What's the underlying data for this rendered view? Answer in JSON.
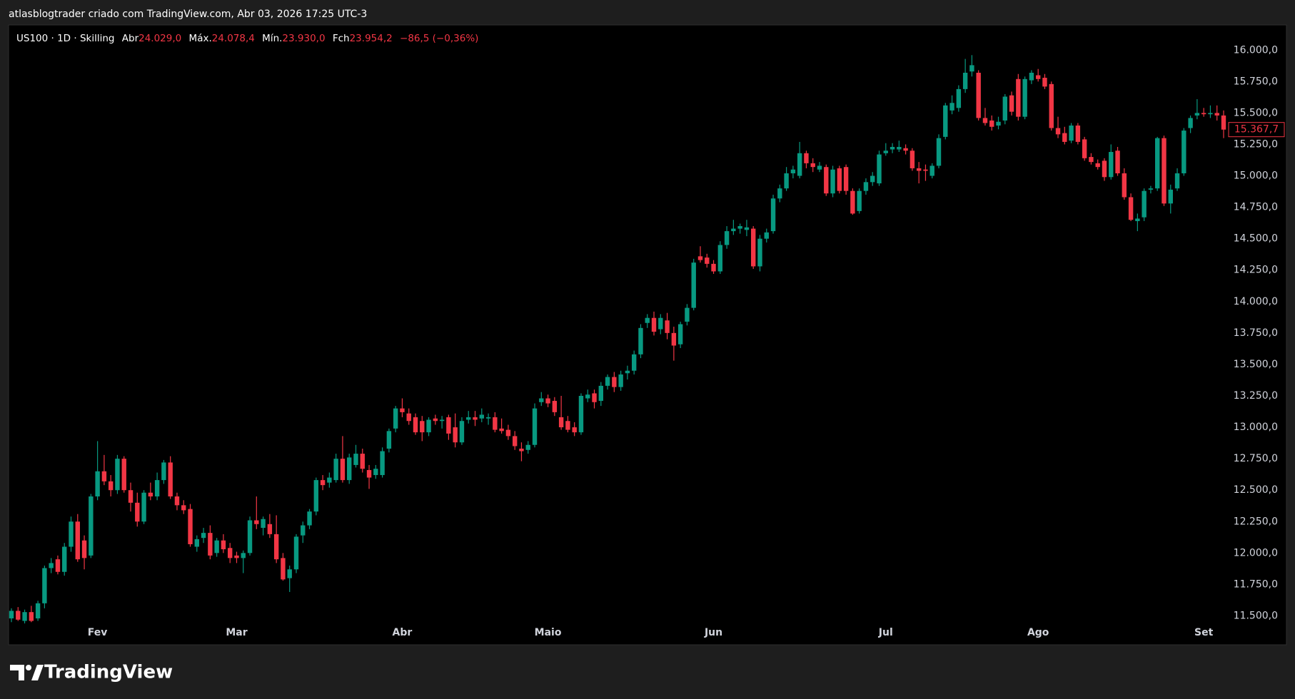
{
  "header": {
    "attribution": "atlasblogtrader criado com TradingView.com, Abr 03, 2026 17:25 UTC-3"
  },
  "legend": {
    "symbol": "US100 · 1D · Skilling",
    "open_label": "Abr",
    "open": "24.029,0",
    "high_label": "Máx.",
    "high": "24.078,4",
    "low_label": "Mín.",
    "low": "23.930,0",
    "close_label": "Fch",
    "close": "23.954,2",
    "change": "−86,5 (−0,36%)"
  },
  "footer": {
    "brand": "TradingView"
  },
  "chart_data": {
    "type": "candlestick",
    "up_color": "#089981",
    "down_color": "#f23645",
    "ylim": [
      11270,
      16200
    ],
    "yticks": [
      {
        "value": 11500,
        "label": "11.500,0"
      },
      {
        "value": 11750,
        "label": "11.750,0"
      },
      {
        "value": 12000,
        "label": "12.000,0"
      },
      {
        "value": 12250,
        "label": "12.250,0"
      },
      {
        "value": 12500,
        "label": "12.500,0"
      },
      {
        "value": 12750,
        "label": "12.750,0"
      },
      {
        "value": 13000,
        "label": "13.000,0"
      },
      {
        "value": 13250,
        "label": "13.250,0"
      },
      {
        "value": 13500,
        "label": "13.500,0"
      },
      {
        "value": 13750,
        "label": "13.750,0"
      },
      {
        "value": 14000,
        "label": "14.000,0"
      },
      {
        "value": 14250,
        "label": "14.250,0"
      },
      {
        "value": 14500,
        "label": "14.500,0"
      },
      {
        "value": 14750,
        "label": "14.750,0"
      },
      {
        "value": 15000,
        "label": "15.000,0"
      },
      {
        "value": 15250,
        "label": "15.250,0"
      },
      {
        "value": 15500,
        "label": "15.500,0"
      },
      {
        "value": 15750,
        "label": "15.750,0"
      },
      {
        "value": 16000,
        "label": "16.000,0"
      }
    ],
    "last_price": {
      "value": 15367.7,
      "label": "15.367,7"
    },
    "categories": [
      null,
      null,
      null,
      null,
      null,
      null,
      null,
      null,
      null,
      null,
      null,
      null,
      null,
      "Fev",
      null,
      null,
      null,
      null,
      null,
      null,
      null,
      null,
      null,
      null,
      null,
      null,
      null,
      null,
      null,
      null,
      null,
      null,
      null,
      null,
      "Mar",
      null,
      null,
      null,
      null,
      null,
      null,
      null,
      null,
      null,
      null,
      null,
      null,
      null,
      null,
      null,
      null,
      null,
      null,
      null,
      null,
      null,
      null,
      null,
      null,
      "Abr",
      null,
      null,
      null,
      null,
      null,
      null,
      null,
      null,
      null,
      null,
      null,
      null,
      null,
      null,
      null,
      null,
      null,
      null,
      null,
      null,
      null,
      "Maio",
      null,
      null,
      null,
      null,
      null,
      null,
      null,
      null,
      null,
      null,
      null,
      null,
      null,
      null,
      null,
      null,
      null,
      null,
      null,
      null,
      null,
      null,
      null,
      null,
      "Jun",
      null,
      null,
      null,
      null,
      null,
      null,
      null,
      null,
      null,
      null,
      null,
      null,
      null,
      null,
      null,
      null,
      null,
      null,
      null,
      null,
      null,
      null,
      null,
      null,
      null,
      "Jul",
      null,
      null,
      null,
      null,
      null,
      null,
      null,
      null,
      null,
      null,
      null,
      null,
      null,
      null,
      null,
      null,
      null,
      null,
      null,
      null,
      null,
      null,
      "Ago",
      null,
      null,
      null,
      null,
      null,
      null,
      null,
      null,
      null,
      null,
      null,
      null,
      null,
      null,
      null,
      null,
      null,
      null,
      null,
      null,
      null,
      null,
      null,
      null,
      "Set",
      null,
      null,
      null
    ],
    "candles": [
      [
        11480,
        11560,
        11450,
        11540
      ],
      [
        11540,
        11570,
        11460,
        11470
      ],
      [
        11460,
        11550,
        11440,
        11530
      ],
      [
        11530,
        11580,
        11450,
        11460
      ],
      [
        11480,
        11620,
        11460,
        11600
      ],
      [
        11600,
        11900,
        11560,
        11880
      ],
      [
        11880,
        11960,
        11840,
        11920
      ],
      [
        11950,
        11980,
        11830,
        11850
      ],
      [
        11850,
        12080,
        11820,
        12050
      ],
      [
        12050,
        12290,
        12010,
        12250
      ],
      [
        12250,
        12310,
        11930,
        11950
      ],
      [
        12100,
        12140,
        11870,
        11960
      ],
      [
        11980,
        12470,
        11960,
        12450
      ],
      [
        12450,
        12890,
        12420,
        12650
      ],
      [
        12650,
        12780,
        12540,
        12570
      ],
      [
        12570,
        12620,
        12450,
        12500
      ],
      [
        12500,
        12780,
        12470,
        12750
      ],
      [
        12750,
        12770,
        12480,
        12500
      ],
      [
        12500,
        12560,
        12330,
        12400
      ],
      [
        12400,
        12480,
        12210,
        12250
      ],
      [
        12250,
        12500,
        12230,
        12480
      ],
      [
        12480,
        12560,
        12420,
        12450
      ],
      [
        12450,
        12640,
        12420,
        12580
      ],
      [
        12580,
        12740,
        12550,
        12720
      ],
      [
        12720,
        12770,
        12430,
        12450
      ],
      [
        12450,
        12480,
        12340,
        12380
      ],
      [
        12380,
        12420,
        12310,
        12340
      ],
      [
        12350,
        12390,
        12050,
        12070
      ],
      [
        12050,
        12140,
        12010,
        12110
      ],
      [
        12120,
        12200,
        12080,
        12160
      ],
      [
        12160,
        12220,
        11950,
        11980
      ],
      [
        12000,
        12120,
        11970,
        12100
      ],
      [
        12100,
        12150,
        12000,
        12030
      ],
      [
        12040,
        12080,
        11920,
        11960
      ],
      [
        11980,
        12010,
        11920,
        11960
      ],
      [
        11960,
        12020,
        11840,
        12000
      ],
      [
        12000,
        12290,
        11980,
        12260
      ],
      [
        12260,
        12450,
        12190,
        12230
      ],
      [
        12200,
        12290,
        12140,
        12270
      ],
      [
        12230,
        12310,
        12120,
        12150
      ],
      [
        12150,
        12300,
        11920,
        11950
      ],
      [
        11960,
        12000,
        11780,
        11790
      ],
      [
        11800,
        11900,
        11690,
        11870
      ],
      [
        11870,
        12150,
        11840,
        12130
      ],
      [
        12140,
        12250,
        12080,
        12220
      ],
      [
        12220,
        12350,
        12190,
        12330
      ],
      [
        12330,
        12600,
        12300,
        12580
      ],
      [
        12580,
        12620,
        12500,
        12540
      ],
      [
        12560,
        12640,
        12520,
        12600
      ],
      [
        12580,
        12790,
        12560,
        12750
      ],
      [
        12750,
        12930,
        12560,
        12580
      ],
      [
        12580,
        12790,
        12550,
        12760
      ],
      [
        12700,
        12860,
        12680,
        12790
      ],
      [
        12790,
        12830,
        12640,
        12670
      ],
      [
        12660,
        12700,
        12510,
        12600
      ],
      [
        12620,
        12700,
        12590,
        12670
      ],
      [
        12620,
        12840,
        12600,
        12810
      ],
      [
        12830,
        12990,
        12800,
        12970
      ],
      [
        12990,
        13170,
        12960,
        13150
      ],
      [
        13150,
        13230,
        13080,
        13120
      ],
      [
        13110,
        13150,
        13020,
        13050
      ],
      [
        13080,
        13110,
        12940,
        12960
      ],
      [
        13050,
        13090,
        12890,
        12960
      ],
      [
        12960,
        13080,
        12930,
        13060
      ],
      [
        13070,
        13100,
        13020,
        13050
      ],
      [
        13050,
        13090,
        12990,
        13060
      ],
      [
        13080,
        13100,
        12900,
        12950
      ],
      [
        13000,
        13110,
        12840,
        12880
      ],
      [
        12880,
        13080,
        12860,
        13050
      ],
      [
        13060,
        13130,
        13030,
        13080
      ],
      [
        13080,
        13130,
        13010,
        13060
      ],
      [
        13070,
        13150,
        13040,
        13100
      ],
      [
        13070,
        13110,
        13020,
        13080
      ],
      [
        13080,
        13120,
        12960,
        12980
      ],
      [
        12990,
        13070,
        12950,
        12970
      ],
      [
        12980,
        13020,
        12900,
        12930
      ],
      [
        12930,
        12970,
        12820,
        12850
      ],
      [
        12830,
        12880,
        12730,
        12810
      ],
      [
        12820,
        12890,
        12790,
        12860
      ],
      [
        12860,
        13190,
        12840,
        13150
      ],
      [
        13200,
        13280,
        13170,
        13230
      ],
      [
        13230,
        13260,
        13160,
        13190
      ],
      [
        13210,
        13240,
        13090,
        13120
      ],
      [
        13080,
        13250,
        12980,
        13000
      ],
      [
        13050,
        13090,
        12960,
        12980
      ],
      [
        13000,
        13040,
        12930,
        12960
      ],
      [
        12960,
        13270,
        12940,
        13250
      ],
      [
        13230,
        13300,
        13200,
        13260
      ],
      [
        13270,
        13300,
        13150,
        13200
      ],
      [
        13210,
        13360,
        13170,
        13330
      ],
      [
        13330,
        13420,
        13300,
        13400
      ],
      [
        13400,
        13440,
        13280,
        13320
      ],
      [
        13320,
        13450,
        13290,
        13420
      ],
      [
        13430,
        13490,
        13380,
        13450
      ],
      [
        13450,
        13610,
        13420,
        13580
      ],
      [
        13580,
        13820,
        13550,
        13790
      ],
      [
        13830,
        13900,
        13790,
        13870
      ],
      [
        13870,
        13920,
        13730,
        13760
      ],
      [
        13780,
        13900,
        13740,
        13870
      ],
      [
        13850,
        13910,
        13700,
        13750
      ],
      [
        13750,
        13800,
        13530,
        13650
      ],
      [
        13660,
        13840,
        13630,
        13820
      ],
      [
        13840,
        13980,
        13810,
        13950
      ],
      [
        13950,
        14340,
        13930,
        14310
      ],
      [
        14360,
        14440,
        14310,
        14330
      ],
      [
        14350,
        14380,
        14270,
        14300
      ],
      [
        14300,
        14330,
        14220,
        14240
      ],
      [
        14240,
        14480,
        14220,
        14450
      ],
      [
        14450,
        14600,
        14420,
        14560
      ],
      [
        14560,
        14650,
        14530,
        14580
      ],
      [
        14580,
        14620,
        14540,
        14600
      ],
      [
        14570,
        14650,
        14520,
        14590
      ],
      [
        14580,
        14600,
        14260,
        14280
      ],
      [
        14280,
        14530,
        14240,
        14500
      ],
      [
        14500,
        14580,
        14470,
        14550
      ],
      [
        14560,
        14850,
        14540,
        14820
      ],
      [
        14820,
        14930,
        14790,
        14900
      ],
      [
        14900,
        15070,
        14880,
        15020
      ],
      [
        15020,
        15080,
        14980,
        15050
      ],
      [
        15000,
        15270,
        14980,
        15180
      ],
      [
        15180,
        15200,
        15060,
        15100
      ],
      [
        15100,
        15140,
        15030,
        15070
      ],
      [
        15050,
        15110,
        15030,
        15080
      ],
      [
        15070,
        15090,
        14840,
        14860
      ],
      [
        14860,
        15080,
        14830,
        15050
      ],
      [
        15060,
        15080,
        14860,
        14880
      ],
      [
        15070,
        15090,
        14850,
        14880
      ],
      [
        14880,
        14900,
        14690,
        14700
      ],
      [
        14720,
        14900,
        14700,
        14880
      ],
      [
        14880,
        14980,
        14850,
        14950
      ],
      [
        14950,
        15030,
        14920,
        15000
      ],
      [
        14940,
        15200,
        14920,
        15170
      ],
      [
        15180,
        15260,
        15160,
        15200
      ],
      [
        15210,
        15260,
        15180,
        15230
      ],
      [
        15210,
        15280,
        15190,
        15230
      ],
      [
        15220,
        15250,
        15170,
        15200
      ],
      [
        15200,
        15220,
        15040,
        15060
      ],
      [
        15060,
        15110,
        14940,
        15040
      ],
      [
        15050,
        15090,
        14960,
        15040
      ],
      [
        15000,
        15100,
        14980,
        15080
      ],
      [
        15080,
        15330,
        15060,
        15300
      ],
      [
        15310,
        15580,
        15290,
        15560
      ],
      [
        15520,
        15640,
        15490,
        15580
      ],
      [
        15540,
        15720,
        15510,
        15690
      ],
      [
        15690,
        15930,
        15660,
        15820
      ],
      [
        15830,
        15960,
        15790,
        15880
      ],
      [
        15820,
        15840,
        15440,
        15460
      ],
      [
        15460,
        15540,
        15400,
        15420
      ],
      [
        15440,
        15480,
        15360,
        15390
      ],
      [
        15400,
        15470,
        15370,
        15430
      ],
      [
        15440,
        15650,
        15410,
        15630
      ],
      [
        15640,
        15670,
        15480,
        15510
      ],
      [
        15770,
        15810,
        15440,
        15470
      ],
      [
        15470,
        15790,
        15450,
        15770
      ],
      [
        15760,
        15840,
        15730,
        15820
      ],
      [
        15800,
        15850,
        15750,
        15770
      ],
      [
        15780,
        15810,
        15690,
        15710
      ],
      [
        15730,
        15750,
        15360,
        15380
      ],
      [
        15380,
        15470,
        15300,
        15330
      ],
      [
        15340,
        15390,
        15250,
        15270
      ],
      [
        15280,
        15420,
        15260,
        15400
      ],
      [
        15400,
        15420,
        15250,
        15270
      ],
      [
        15290,
        15310,
        15120,
        15140
      ],
      [
        15150,
        15180,
        15090,
        15110
      ],
      [
        15100,
        15130,
        15050,
        15070
      ],
      [
        15120,
        15140,
        14960,
        14990
      ],
      [
        14990,
        15250,
        14970,
        15190
      ],
      [
        15200,
        15230,
        15000,
        15020
      ],
      [
        15020,
        15060,
        14810,
        14830
      ],
      [
        14830,
        14860,
        14640,
        14650
      ],
      [
        14640,
        14700,
        14560,
        14660
      ],
      [
        14670,
        14900,
        14640,
        14880
      ],
      [
        14890,
        14920,
        14860,
        14900
      ],
      [
        14900,
        15310,
        14880,
        15300
      ],
      [
        15300,
        15320,
        14760,
        14780
      ],
      [
        14780,
        14930,
        14700,
        14890
      ],
      [
        14900,
        15060,
        14880,
        15020
      ],
      [
        15020,
        15380,
        15000,
        15360
      ],
      [
        15380,
        15480,
        15340,
        15460
      ],
      [
        15480,
        15610,
        15450,
        15500
      ],
      [
        15500,
        15540,
        15470,
        15490
      ],
      [
        15490,
        15560,
        15460,
        15500
      ],
      [
        15500,
        15560,
        15440,
        15480
      ],
      [
        15480,
        15520,
        15300,
        15367.7
      ]
    ]
  }
}
